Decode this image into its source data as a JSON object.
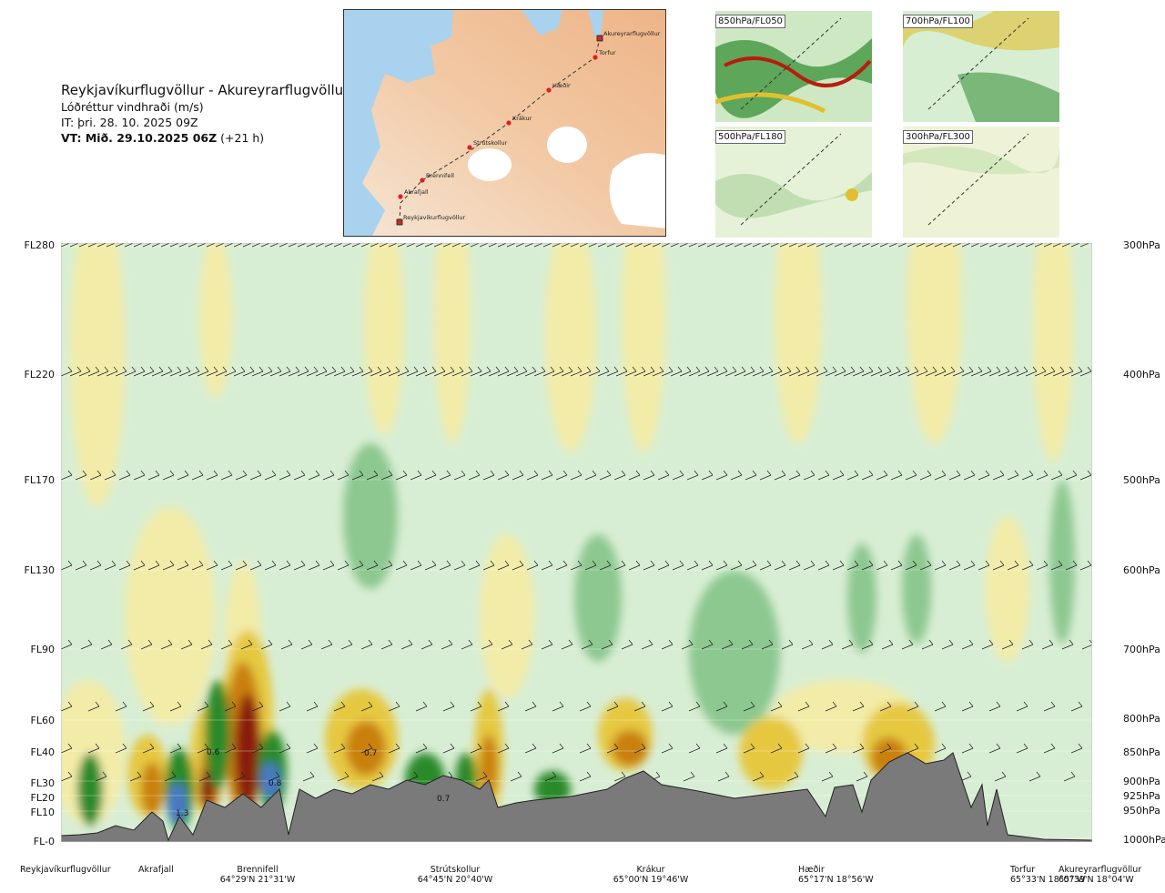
{
  "header": {
    "route": "Reykjavíkurflugvöllur - Akureyrarflugvöllur",
    "parameter": "Lóðréttur vindhraði (m/s)",
    "issue_time": "IT: þri. 28. 10. 2025 09Z",
    "valid_prefix": "VT: Mið. 29.10.2025 06Z",
    "valid_suffix": "(+21 h)"
  },
  "route_map": {
    "waypoints": [
      {
        "name": "Reykjavíkurflugvöllur"
      },
      {
        "name": "Akrafjall"
      },
      {
        "name": "Brennifell"
      },
      {
        "name": "Strútskollur"
      },
      {
        "name": "Krákur"
      },
      {
        "name": "Hæðir"
      },
      {
        "name": "Torfur"
      },
      {
        "name": "Akureyrarflugvöllur"
      }
    ]
  },
  "mini_maps": [
    {
      "label": "850hPa/FL050"
    },
    {
      "label": "700hPa/FL100"
    },
    {
      "label": "500hPa/FL180"
    },
    {
      "label": "300hPa/FL300"
    }
  ],
  "chart_data": {
    "type": "heatmap",
    "title": "Reykjavíkurflugvöllur - Akureyrarflugvöllur",
    "subtitle": "Lóðréttur vindhraði (m/s)",
    "y_left_ticks": [
      "FL280",
      "FL220",
      "FL170",
      "FL130",
      "FL90",
      "FL60",
      "FL40",
      "FL30",
      "FL20",
      "FL10",
      "FL-0"
    ],
    "y_right_ticks": [
      "300hPa",
      "400hPa",
      "500hPa",
      "600hPa",
      "700hPa",
      "800hPa",
      "850hPa",
      "900hPa",
      "925hPa",
      "950hPa",
      "1000hPa"
    ],
    "x_stations": [
      {
        "name": "Reykjavíkurflugvöllur",
        "coord": ""
      },
      {
        "name": "Akrafjall",
        "coord": ""
      },
      {
        "name": "Brennifell",
        "coord": "64°29'N 21°31'W"
      },
      {
        "name": "Strútskollur",
        "coord": "64°45'N 20°40'W"
      },
      {
        "name": "Krákur",
        "coord": "65°00'N 19°46'W"
      },
      {
        "name": "Hæðir",
        "coord": "65°17'N 18°56'W"
      },
      {
        "name": "Torfur",
        "coord": "65°33'N 18°07'W"
      },
      {
        "name": "Akureyrarflugvöllur",
        "coord": "65°39'N 18°04'W"
      }
    ],
    "annotations": [
      "1.3",
      "0.6",
      "0.8",
      "0.7",
      "0.7"
    ],
    "colors": {
      "down_light": "#f3eca8",
      "down_mid": "#e6c840",
      "down_strong": "#c98010",
      "down_max": "#8a1a10",
      "up_light": "#d4ecd0",
      "up_mid": "#8cc890",
      "up_strong": "#2a8a2a",
      "up_max": "#4a78c8",
      "terrain": "#7a7a7a"
    }
  }
}
